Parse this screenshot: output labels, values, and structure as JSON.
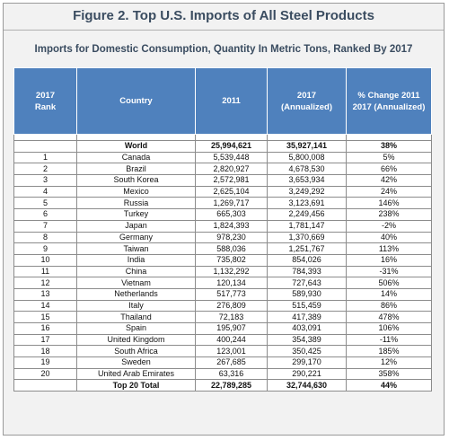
{
  "title": "Figure 2. Top U.S. Imports of All Steel Products",
  "subtitle": "Imports for Domestic Consumption, Quantity In Metric Tons, Ranked By 2017",
  "headers": {
    "rank": [
      "2017",
      "Rank"
    ],
    "country": "Country",
    "y2011": "2011",
    "y2017": [
      "2017",
      "(Annualized)"
    ],
    "change": [
      "% Change 2011",
      "2017 (Annualized)"
    ]
  },
  "world": {
    "rank": "",
    "country": "World",
    "y2011": "25,994,621",
    "y2017": "35,927,141",
    "change": "38%"
  },
  "rows": [
    {
      "rank": "1",
      "country": "Canada",
      "y2011": "5,539,448",
      "y2017": "5,800,008",
      "change": "5%"
    },
    {
      "rank": "2",
      "country": "Brazil",
      "y2011": "2,820,927",
      "y2017": "4,678,530",
      "change": "66%"
    },
    {
      "rank": "3",
      "country": "South Korea",
      "y2011": "2,572,981",
      "y2017": "3,653,934",
      "change": "42%"
    },
    {
      "rank": "4",
      "country": "Mexico",
      "y2011": "2,625,104",
      "y2017": "3,249,292",
      "change": "24%"
    },
    {
      "rank": "5",
      "country": "Russia",
      "y2011": "1,269,717",
      "y2017": "3,123,691",
      "change": "146%"
    },
    {
      "rank": "6",
      "country": "Turkey",
      "y2011": "665,303",
      "y2017": "2,249,456",
      "change": "238%"
    },
    {
      "rank": "7",
      "country": "Japan",
      "y2011": "1,824,393",
      "y2017": "1,781,147",
      "change": "-2%"
    },
    {
      "rank": "8",
      "country": "Germany",
      "y2011": "978,230",
      "y2017": "1,370,669",
      "change": "40%"
    },
    {
      "rank": "9",
      "country": "Taiwan",
      "y2011": "588,036",
      "y2017": "1,251,767",
      "change": "113%"
    },
    {
      "rank": "10",
      "country": "India",
      "y2011": "735,802",
      "y2017": "854,026",
      "change": "16%"
    },
    {
      "rank": "11",
      "country": "China",
      "y2011": "1,132,292",
      "y2017": "784,393",
      "change": "-31%"
    },
    {
      "rank": "12",
      "country": "Vietnam",
      "y2011": "120,134",
      "y2017": "727,643",
      "change": "506%"
    },
    {
      "rank": "13",
      "country": "Netherlands",
      "y2011": "517,773",
      "y2017": "589,930",
      "change": "14%"
    },
    {
      "rank": "14",
      "country": "Italy",
      "y2011": "276,809",
      "y2017": "515,459",
      "change": "86%"
    },
    {
      "rank": "15",
      "country": "Thailand",
      "y2011": "72,183",
      "y2017": "417,389",
      "change": "478%"
    },
    {
      "rank": "16",
      "country": "Spain",
      "y2011": "195,907",
      "y2017": "403,091",
      "change": "106%"
    },
    {
      "rank": "17",
      "country": "United Kingdom",
      "y2011": "400,244",
      "y2017": "354,389",
      "change": "-11%"
    },
    {
      "rank": "18",
      "country": "South Africa",
      "y2011": "123,001",
      "y2017": "350,425",
      "change": "185%"
    },
    {
      "rank": "19",
      "country": "Sweden",
      "y2011": "267,685",
      "y2017": "299,170",
      "change": "12%"
    },
    {
      "rank": "20",
      "country": "United Arab Emirates",
      "y2011": "63,316",
      "y2017": "290,221",
      "change": "358%"
    }
  ],
  "total": {
    "rank": "",
    "country": "Top 20 Total",
    "y2011": "22,789,285",
    "y2017": "32,744,630",
    "change": "44%"
  }
}
